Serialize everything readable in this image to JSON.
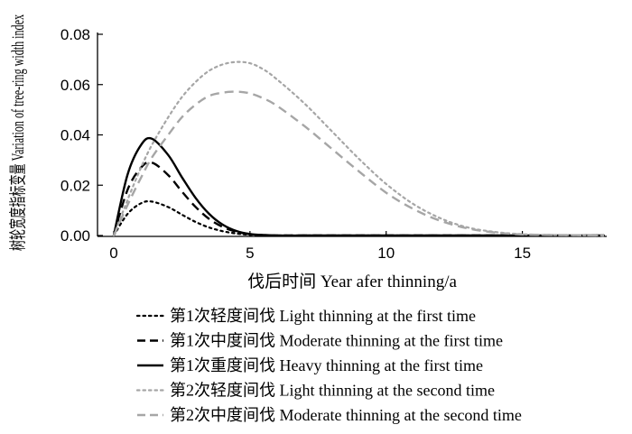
{
  "chart_data": {
    "type": "line",
    "title": "",
    "xlabel": "伐后时间 Year afer thinning/a",
    "ylabel": "树轮宽度指标变量 Variation of tree-ring width index",
    "xlim": [
      0,
      18
    ],
    "ylim": [
      0,
      0.08
    ],
    "x_ticks": [
      0,
      5,
      10,
      15
    ],
    "y_ticks": [
      0.0,
      0.02,
      0.04,
      0.06,
      0.08
    ],
    "x_tick_labels": [
      "0",
      "5",
      "10",
      "15"
    ],
    "y_tick_labels": [
      "0.00",
      "0.02",
      "0.04",
      "0.06",
      "0.08"
    ],
    "grid": false,
    "legend_position": "bottom",
    "x": [
      0,
      0.5,
      1,
      1.4,
      2,
      2.5,
      3,
      3.5,
      4,
      4.5,
      5,
      5.5,
      6,
      7,
      8,
      9,
      10,
      11,
      12,
      13,
      14,
      15,
      16,
      17,
      18
    ],
    "series": [
      {
        "name": "第1次轻度间伐 Light thinning at the first time",
        "color": "#000000",
        "dash": "dotted",
        "values": [
          0,
          0.0085,
          0.0128,
          0.0135,
          0.0113,
          0.0083,
          0.0054,
          0.0032,
          0.0017,
          0.0008,
          0.0003,
          0.0001,
          0,
          0,
          0,
          0,
          0,
          0,
          0,
          0,
          0,
          0,
          0,
          0,
          0
        ]
      },
      {
        "name": "第1次中度间伐 Moderate thinning at the first time",
        "color": "#000000",
        "dash": "dashed",
        "values": [
          0,
          0.018,
          0.027,
          0.029,
          0.024,
          0.0175,
          0.0114,
          0.0066,
          0.0034,
          0.0015,
          0.0005,
          0.0001,
          0,
          0,
          0,
          0,
          0,
          0,
          0,
          0,
          0,
          0,
          0,
          0,
          0
        ]
      },
      {
        "name": "第1次重度间伐 Heavy thinning at the first time",
        "color": "#000000",
        "dash": "solid",
        "values": [
          0,
          0.024,
          0.036,
          0.0385,
          0.032,
          0.0232,
          0.015,
          0.0086,
          0.0043,
          0.0018,
          0.0006,
          0.0002,
          0,
          0,
          0,
          0,
          0,
          0,
          0,
          0,
          0,
          0,
          0,
          0,
          0
        ]
      },
      {
        "name": "第2次轻度间伐 Light thinning at the second time",
        "color": "#a6a6a6",
        "dash": "dotted",
        "values": [
          0,
          0.014,
          0.027,
          0.036,
          0.047,
          0.055,
          0.061,
          0.0655,
          0.068,
          0.069,
          0.0685,
          0.066,
          0.062,
          0.0525,
          0.0415,
          0.0305,
          0.0205,
          0.0125,
          0.0068,
          0.0032,
          0.0014,
          0.0005,
          0.0002,
          0.0001,
          0
        ]
      },
      {
        "name": "第2次中度间伐 Moderate thinning at the second time",
        "color": "#a6a6a6",
        "dash": "dashed",
        "values": [
          0,
          0.012,
          0.023,
          0.031,
          0.04,
          0.047,
          0.052,
          0.0555,
          0.0568,
          0.0572,
          0.0565,
          0.0545,
          0.0515,
          0.0435,
          0.0345,
          0.0255,
          0.017,
          0.0105,
          0.0058,
          0.0028,
          0.0012,
          0.0004,
          0.0002,
          0.0001,
          0
        ]
      }
    ]
  }
}
